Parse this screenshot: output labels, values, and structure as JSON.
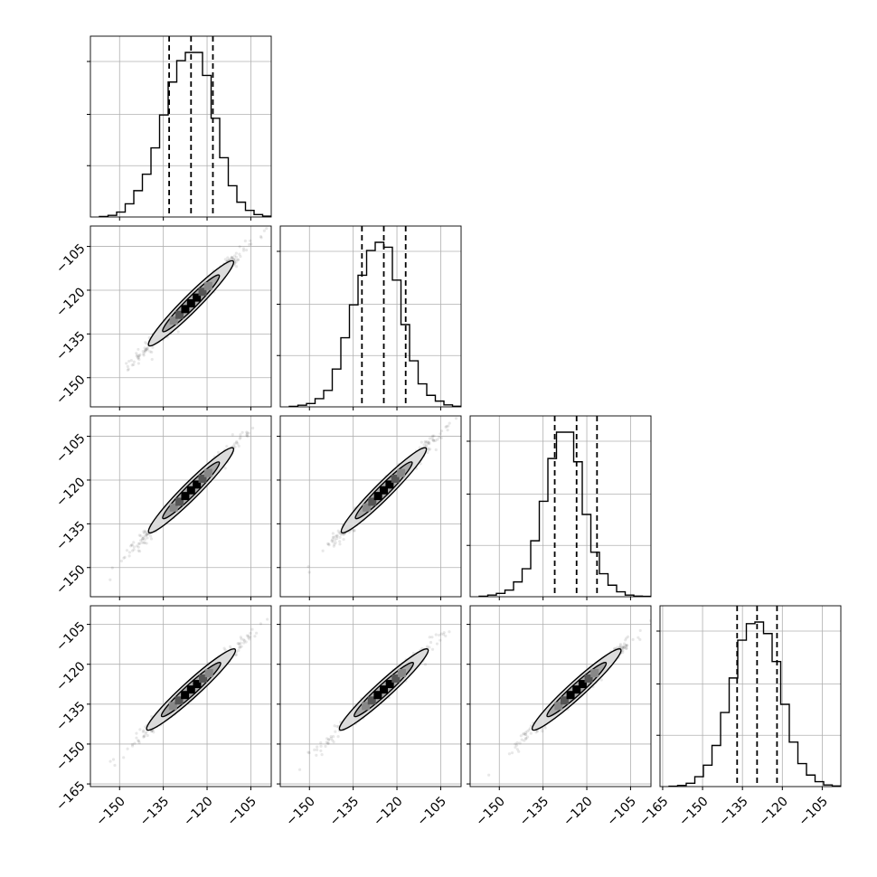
{
  "chart_data": {
    "type": "corner",
    "grid": true,
    "num_params": 4,
    "quantile_lines": "dashed, 3 per histogram",
    "x_ticks": [
      [
        "−150",
        "−135",
        "−120",
        "−105"
      ],
      [
        "−150",
        "−135",
        "−120",
        "−105"
      ],
      [
        "−150",
        "−135",
        "−120",
        "−105"
      ],
      [
        "−165",
        "−150",
        "−135",
        "−120",
        "−105"
      ]
    ],
    "y_ticks": [
      [],
      [
        "−105",
        "−120",
        "−135",
        "−150"
      ],
      [
        "−105",
        "−120",
        "−135",
        "−150"
      ],
      [
        "−105",
        "−120",
        "−135",
        "−150",
        "−165"
      ]
    ],
    "params": [
      {
        "range": [
          -160,
          -98
        ],
        "quantiles": [
          -133.0,
          -125.5,
          -118.0
        ],
        "hist": [
          0.003,
          0.01,
          0.03,
          0.08,
          0.16,
          0.26,
          0.42,
          0.62,
          0.82,
          0.95,
          1.0,
          1.0,
          0.86,
          0.6,
          0.36,
          0.19,
          0.09,
          0.04,
          0.015,
          0.005
        ]
      },
      {
        "range": [
          -160,
          -98
        ],
        "quantiles": [
          -132.0,
          -124.5,
          -117.0
        ],
        "hist": [
          0.003,
          0.01,
          0.02,
          0.05,
          0.1,
          0.23,
          0.42,
          0.62,
          0.8,
          0.95,
          1.0,
          0.97,
          0.77,
          0.5,
          0.28,
          0.14,
          0.07,
          0.035,
          0.012,
          0.004
        ]
      },
      {
        "range": [
          -160,
          -98
        ],
        "quantiles": [
          -131.0,
          -123.5,
          -116.5
        ],
        "hist": [
          0.003,
          0.01,
          0.02,
          0.04,
          0.09,
          0.17,
          0.34,
          0.58,
          0.84,
          1.0,
          1.0,
          0.82,
          0.5,
          0.27,
          0.14,
          0.07,
          0.03,
          0.01,
          0.004,
          0.002
        ]
      },
      {
        "range": [
          -166,
          -98
        ],
        "quantiles": [
          -137.0,
          -129.5,
          -122.0
        ],
        "hist": [
          0.002,
          0.007,
          0.02,
          0.06,
          0.13,
          0.25,
          0.45,
          0.66,
          0.89,
          0.99,
          1.0,
          0.93,
          0.76,
          0.5,
          0.27,
          0.14,
          0.07,
          0.03,
          0.01,
          0.004
        ]
      }
    ]
  }
}
